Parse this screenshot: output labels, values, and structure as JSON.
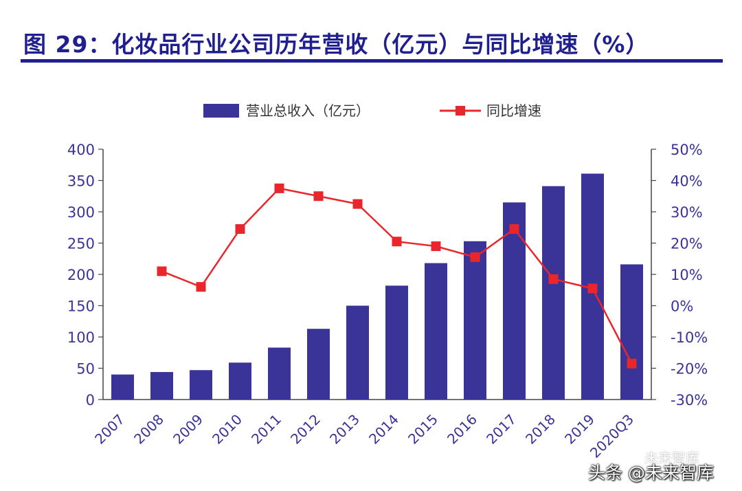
{
  "header": {
    "title": "图 29：化妆品行业公司历年营收（亿元）与同比增速（%）"
  },
  "chart_data": {
    "type": "bar",
    "categories": [
      "2007",
      "2008",
      "2009",
      "2010",
      "2011",
      "2012",
      "2013",
      "2014",
      "2015",
      "2016",
      "2017",
      "2018",
      "2019",
      "2020Q3"
    ],
    "series": [
      {
        "name": "营业总收入（亿元）",
        "type": "bar",
        "axis": "left",
        "color": "#3a3398",
        "values": [
          40,
          44,
          47,
          59,
          83,
          113,
          150,
          182,
          218,
          253,
          315,
          341,
          361,
          216
        ]
      },
      {
        "name": "同比增速",
        "type": "line",
        "axis": "right",
        "color": "#e8262c",
        "values": [
          null,
          11,
          6,
          24.5,
          37.5,
          35,
          32.5,
          20.5,
          19,
          15.5,
          24.5,
          8.5,
          5.5,
          -18.5
        ]
      }
    ],
    "yleft": {
      "min": 0,
      "max": 400,
      "ticks": [
        "0",
        "50",
        "100",
        "150",
        "200",
        "250",
        "300",
        "350",
        "400"
      ]
    },
    "yright": {
      "min": -30,
      "max": 50,
      "ticks": [
        "-30%",
        "-20%",
        "-10%",
        "0%",
        "10%",
        "20%",
        "30%",
        "40%",
        "50%"
      ]
    },
    "legend_position": "top-center",
    "axis_color": "#3a3398"
  },
  "watermark": {
    "main": "头条 @未来智库",
    "secondary": "未来智库"
  }
}
